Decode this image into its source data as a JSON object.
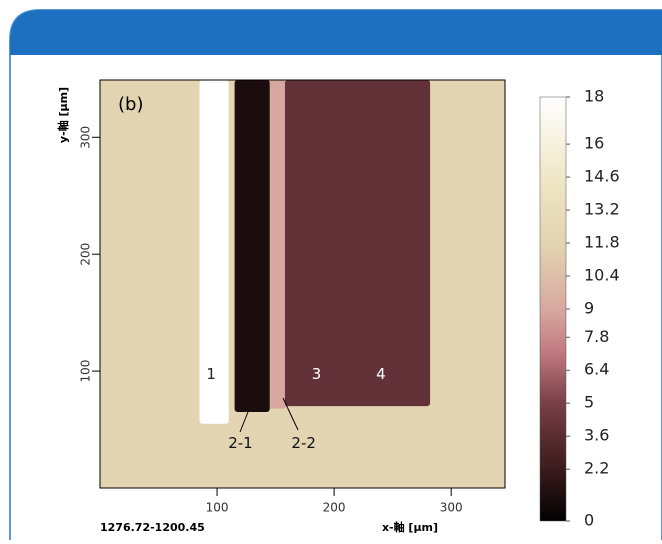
{
  "chart_data": {
    "type": "heatmap",
    "panel_label": "(b)",
    "xlabel": "x-軸 [μm]",
    "ylabel": "y-軸 [μm]",
    "footer": "1276.72-1200.45",
    "xlim": [
      0,
      346
    ],
    "ylim": [
      0,
      349
    ],
    "xticks": [
      100,
      200,
      300
    ],
    "yticks": [
      100,
      200,
      300
    ],
    "clim": [
      0,
      18
    ],
    "cticks": [
      0,
      2.2,
      3.6,
      5,
      6.4,
      7.8,
      9,
      10.4,
      11.8,
      13.2,
      14.6,
      16,
      18
    ],
    "background": 12,
    "regions": [
      {
        "x": [
          142,
          159
        ],
        "y": [
          68,
          349
        ],
        "value": 9
      },
      {
        "x": [
          85,
          110
        ],
        "y": [
          55,
          349
        ],
        "value": 18
      },
      {
        "x": [
          115,
          145
        ],
        "y": [
          65,
          349
        ],
        "value": 1
      },
      {
        "x": [
          158,
          282
        ],
        "y": [
          70,
          349
        ],
        "value": 4
      }
    ],
    "annotations": [
      {
        "text": "1",
        "x": 95,
        "y": 97
      },
      {
        "text": "2-1",
        "x": 120,
        "y": 38
      },
      {
        "text": "2-2",
        "x": 174,
        "y": 38
      },
      {
        "text": "3",
        "x": 185,
        "y": 97
      },
      {
        "text": "4",
        "x": 240,
        "y": 97
      }
    ]
  }
}
